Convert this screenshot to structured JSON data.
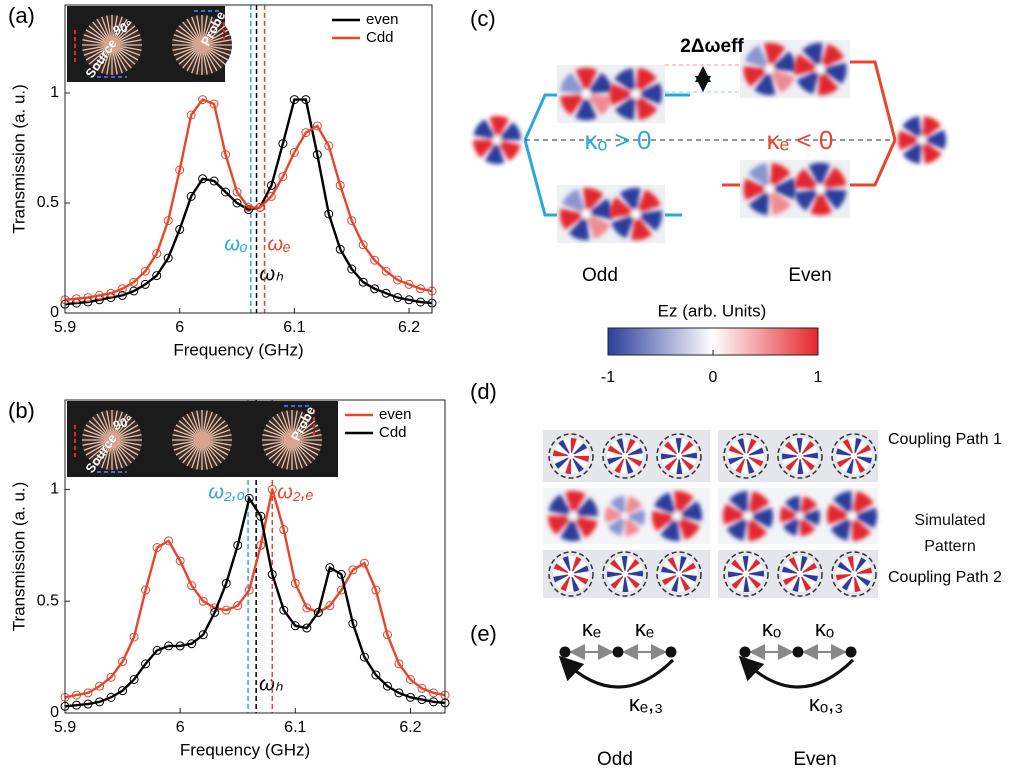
{
  "chart_data": [
    {
      "type": "line",
      "panel": "(a)",
      "x_label": "Frequency (GHz)",
      "y_label": "Transmission (a. u.)",
      "x": [
        5.9,
        5.91,
        5.92,
        5.93,
        5.94,
        5.95,
        5.96,
        5.97,
        5.98,
        5.99,
        6.0,
        6.01,
        6.02,
        6.03,
        6.04,
        6.05,
        6.06,
        6.07,
        6.08,
        6.09,
        6.1,
        6.11,
        6.12,
        6.13,
        6.14,
        6.15,
        6.16,
        6.17,
        6.18,
        6.19,
        6.2,
        6.21,
        6.22
      ],
      "series": [
        {
          "name": "even",
          "color": "#000000",
          "values": [
            0.04,
            0.045,
            0.05,
            0.06,
            0.07,
            0.08,
            0.1,
            0.13,
            0.17,
            0.25,
            0.38,
            0.53,
            0.61,
            0.6,
            0.55,
            0.5,
            0.47,
            0.48,
            0.58,
            0.77,
            0.97,
            0.97,
            0.72,
            0.45,
            0.29,
            0.2,
            0.14,
            0.11,
            0.09,
            0.07,
            0.06,
            0.05,
            0.045
          ]
        },
        {
          "name": "Cdd",
          "color": "#e8452c",
          "values": [
            0.06,
            0.065,
            0.07,
            0.08,
            0.09,
            0.11,
            0.14,
            0.19,
            0.27,
            0.42,
            0.65,
            0.9,
            0.97,
            0.95,
            0.72,
            0.55,
            0.48,
            0.48,
            0.53,
            0.62,
            0.73,
            0.82,
            0.85,
            0.76,
            0.58,
            0.42,
            0.31,
            0.24,
            0.19,
            0.15,
            0.13,
            0.11,
            0.1
          ]
        }
      ],
      "xlim": [
        5.9,
        6.22
      ],
      "ylim": [
        0,
        1.4
      ],
      "xticks": [
        5.9,
        6,
        6.1,
        6.2
      ],
      "yticks": [
        0,
        0.5,
        1
      ],
      "legend": "upper right",
      "markers": "open circle",
      "inset": {
        "labels": [
          "90°",
          "Source",
          "Probe"
        ]
      },
      "vlines": [
        {
          "x": 6.062,
          "color": "#29a8e0",
          "label": "ωₒ"
        },
        {
          "x": 6.067,
          "color": "#000000",
          "label": "ωₕ"
        },
        {
          "x": 6.074,
          "color": "#e8452c",
          "label": "ωₑ"
        }
      ]
    },
    {
      "type": "line",
      "panel": "(b)",
      "x_label": "Frequency (GHz)",
      "y_label": "Transmission (a. u.)",
      "x": [
        5.9,
        5.91,
        5.92,
        5.93,
        5.94,
        5.95,
        5.96,
        5.97,
        5.98,
        5.99,
        6.0,
        6.01,
        6.02,
        6.03,
        6.04,
        6.05,
        6.06,
        6.07,
        6.08,
        6.09,
        6.1,
        6.11,
        6.12,
        6.13,
        6.14,
        6.15,
        6.16,
        6.17,
        6.18,
        6.19,
        6.2,
        6.21,
        6.22,
        6.23
      ],
      "series": [
        {
          "name": "even",
          "color": "#e8452c",
          "values": [
            0.07,
            0.08,
            0.09,
            0.12,
            0.16,
            0.23,
            0.34,
            0.55,
            0.74,
            0.77,
            0.68,
            0.57,
            0.5,
            0.47,
            0.46,
            0.48,
            0.55,
            0.75,
            1.0,
            0.82,
            0.58,
            0.47,
            0.45,
            0.48,
            0.55,
            0.64,
            0.67,
            0.55,
            0.35,
            0.22,
            0.15,
            0.11,
            0.09,
            0.08
          ]
        },
        {
          "name": "Cdd",
          "color": "#000000",
          "values": [
            0.03,
            0.035,
            0.04,
            0.05,
            0.07,
            0.1,
            0.15,
            0.22,
            0.28,
            0.3,
            0.3,
            0.31,
            0.35,
            0.45,
            0.58,
            0.75,
            0.96,
            0.88,
            0.62,
            0.46,
            0.39,
            0.38,
            0.45,
            0.65,
            0.62,
            0.4,
            0.25,
            0.17,
            0.12,
            0.09,
            0.07,
            0.06,
            0.05,
            0.045
          ]
        }
      ],
      "xlim": [
        5.9,
        6.23
      ],
      "ylim": [
        0,
        1.4
      ],
      "xticks": [
        5.9,
        6,
        6.1,
        6.2
      ],
      "yticks": [
        0,
        0.5,
        1
      ],
      "legend": "upper right",
      "markers": "open circle",
      "inset": {
        "labels": [
          "90°",
          "Source",
          "Probe"
        ]
      },
      "vlines": [
        {
          "x": 6.059,
          "color": "#29a8e0",
          "label": "ω₂,ₒ"
        },
        {
          "x": 6.066,
          "color": "#000000",
          "label": "ωₕ"
        },
        {
          "x": 6.08,
          "color": "#e8452c",
          "label": "ω₂,ₑ"
        }
      ]
    }
  ],
  "panel_c": {
    "label": "(c)",
    "splitting": "2Δωeff",
    "kappa_odd": "κₒ > 0",
    "kappa_even": "κₑ < 0",
    "odd": "Odd",
    "even": "Even",
    "colorbar": {
      "title": "Ez (arb. Units)",
      "lim": [
        -1,
        1
      ],
      "ticks": [
        -1,
        0,
        1
      ]
    }
  },
  "panel_d": {
    "label": "(d)",
    "rows": [
      "Coupling Path 1",
      "Simulated Pattern",
      "Coupling Path 2"
    ]
  },
  "panel_e": {
    "label": "(e)",
    "odd": {
      "couplings": [
        "κₑ",
        "κₑ"
      ],
      "long": "κₑ,₃",
      "label": "Odd"
    },
    "even": {
      "couplings": [
        "κₒ",
        "κₒ"
      ],
      "long": "κₒ,₃",
      "label": "Even"
    }
  }
}
